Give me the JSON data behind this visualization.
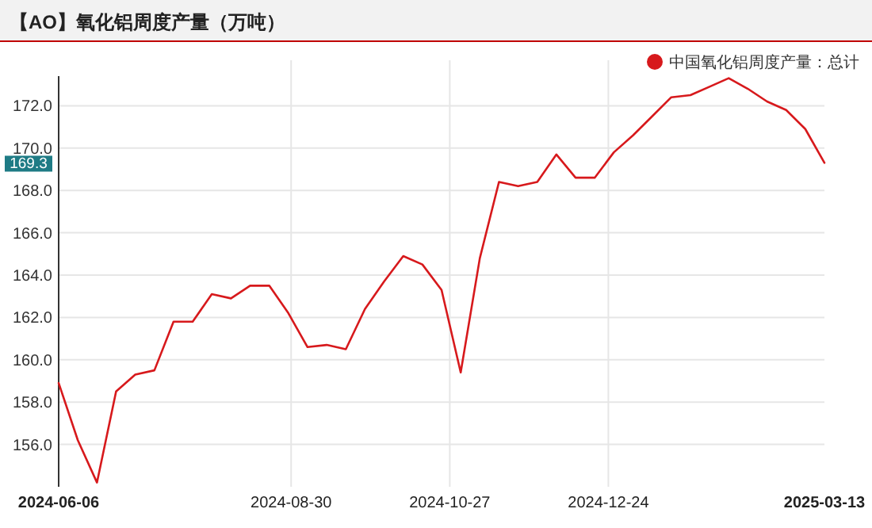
{
  "chart_data": {
    "type": "line",
    "title": "【AO】氧化铝周度产量（万吨）",
    "x": [
      "2024-06-06",
      "2024-06-13",
      "2024-06-20",
      "2024-06-27",
      "2024-07-04",
      "2024-07-11",
      "2024-07-18",
      "2024-07-25",
      "2024-08-01",
      "2024-08-08",
      "2024-08-15",
      "2024-08-22",
      "2024-08-29",
      "2024-09-05",
      "2024-09-12",
      "2024-09-19",
      "2024-09-26",
      "2024-10-03",
      "2024-10-10",
      "2024-10-17",
      "2024-10-24",
      "2024-10-31",
      "2024-11-07",
      "2024-11-14",
      "2024-11-21",
      "2024-11-28",
      "2024-12-05",
      "2024-12-12",
      "2024-12-19",
      "2024-12-26",
      "2025-01-02",
      "2025-01-09",
      "2025-01-16",
      "2025-01-23",
      "2025-01-30",
      "2025-02-06",
      "2025-02-13",
      "2025-02-20",
      "2025-02-27",
      "2025-03-06",
      "2025-03-13"
    ],
    "series": [
      {
        "name": "中国氧化铝周度产量：总计",
        "color": "#d7191c",
        "values": [
          158.9,
          156.2,
          154.2,
          158.5,
          159.3,
          159.5,
          161.8,
          161.8,
          163.1,
          162.9,
          163.5,
          163.5,
          162.2,
          160.6,
          160.7,
          160.5,
          162.4,
          163.7,
          164.9,
          164.5,
          163.3,
          159.4,
          164.8,
          168.4,
          168.2,
          168.4,
          169.7,
          168.6,
          168.6,
          169.8,
          170.6,
          171.5,
          172.4,
          172.5,
          172.9,
          173.3,
          172.8,
          172.2,
          171.8,
          170.9,
          169.3
        ]
      }
    ],
    "xlim": [
      "2024-06-06",
      "2025-03-13"
    ],
    "xticks": [
      "2024-06-06",
      "2024-08-30",
      "2024-10-27",
      "2024-12-24",
      "2025-03-13"
    ],
    "ylim": [
      154.0,
      173.4
    ],
    "yticks": [
      {
        "value": 156,
        "label": "156.0"
      },
      {
        "value": 158,
        "label": "158.0"
      },
      {
        "value": 160,
        "label": "160.0"
      },
      {
        "value": 162,
        "label": "162.0"
      },
      {
        "value": 164,
        "label": "164.0"
      },
      {
        "value": 166,
        "label": "166.0"
      },
      {
        "value": 168,
        "label": "168.0"
      },
      {
        "value": 170,
        "label": "170.0"
      },
      {
        "value": 172,
        "label": "172.0"
      }
    ],
    "annotations": [
      "169.3"
    ],
    "grid": true,
    "legend": "top right",
    "marker": "none",
    "line_style": "solid"
  }
}
